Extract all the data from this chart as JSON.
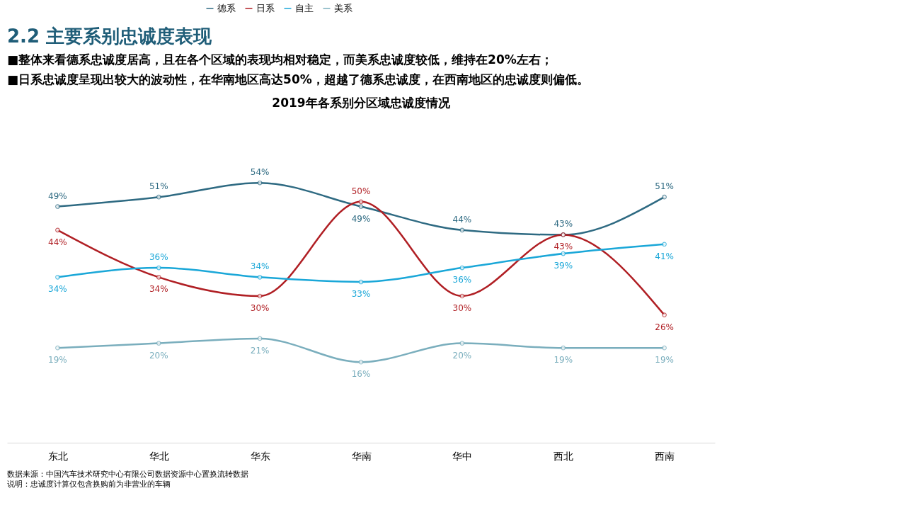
{
  "chart_data": {
    "type": "line",
    "title": "2019年各系别分区域忠诚度情况",
    "categories": [
      "东北",
      "华北",
      "华东",
      "华南",
      "华中",
      "西北",
      "西南"
    ],
    "series": [
      {
        "name": "德系",
        "color": "#2e6a82",
        "values": [
          49,
          51,
          54,
          49,
          44,
          43,
          51
        ],
        "value_labels": [
          "49%",
          "51%",
          "54%",
          "49%",
          "44%",
          "43%",
          "51%"
        ]
      },
      {
        "name": "日系",
        "color": "#b01f24",
        "values": [
          44,
          34,
          30,
          50,
          30,
          43,
          26
        ],
        "value_labels": [
          "44%",
          "34%",
          "30%",
          "50%",
          "30%",
          "43%",
          "26%"
        ]
      },
      {
        "name": "自主",
        "color": "#1aa7d8",
        "values": [
          34,
          36,
          34,
          33,
          36,
          39,
          41
        ],
        "value_labels": [
          "34%",
          "36%",
          "34%",
          "33%",
          "36%",
          "39%",
          "41%"
        ]
      },
      {
        "name": "美系",
        "color": "#7aaebd",
        "values": [
          19,
          20,
          21,
          16,
          20,
          19,
          19
        ],
        "value_labels": [
          "19%",
          "20%",
          "21%",
          "16%",
          "20%",
          "19%",
          "19%"
        ]
      }
    ],
    "legend": "top",
    "grid": false,
    "marker": "circle",
    "line_style": "solid",
    "annotations": [
      "2.2 主要系别忠诚度表现",
      "■整体来看德系忠诚度居高，且在各个区域的表现均相对稳定，而美系忠诚度较低，维持在20%左右；",
      "■日系忠诚度呈现出较大的波动性，在华南地区高达50%，超越了德系忠诚度，在西南地区的忠诚度则偏低。",
      "数据来源：中国汽车技术研究中心有限公司数据资源中心置换流转数据",
      "说明：忠诚度计算仅包含换购前为非营业的车辆"
    ]
  }
}
